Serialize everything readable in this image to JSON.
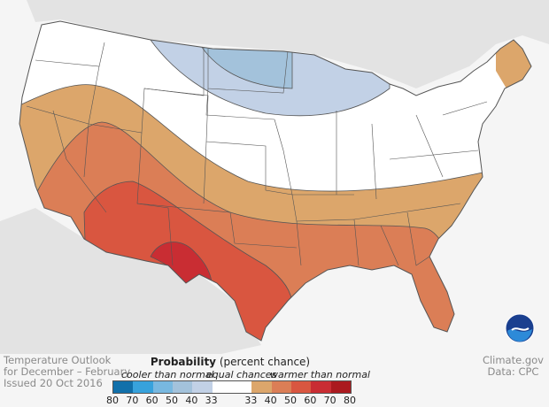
{
  "info": {
    "line1": "Temperature Outlook",
    "line2": "for December – February",
    "line3": "Issued 20 Oct 2016"
  },
  "credit": {
    "line1": "Climate.gov",
    "line2": "Data: CPC"
  },
  "legend": {
    "title_bold": "Probability",
    "title_rest": " (percent chance)",
    "cooler": "cooler than normal",
    "equal": "equal chances",
    "warmer": "warmer than normal",
    "swatches": [
      "#1170aa",
      "#37a2dc",
      "#78b8e0",
      "#a3c2db",
      "#c2d1e6",
      "#ffffff",
      "#dca66b",
      "#db7e56",
      "#d95640",
      "#c92d33",
      "#ab1a1f"
    ],
    "ticks": [
      "80",
      "70",
      "60",
      "50",
      "40",
      "33",
      "33",
      "40",
      "50",
      "60",
      "70",
      "80"
    ]
  },
  "logo": "NOAA"
}
